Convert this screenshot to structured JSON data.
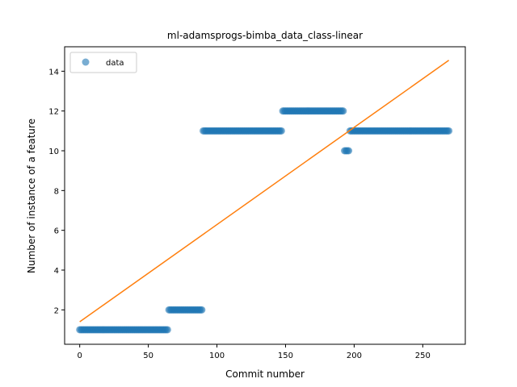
{
  "chart_data": {
    "type": "scatter",
    "title": "ml-adamsprogs-bimba_data_class-linear",
    "xlabel": "Commit number",
    "ylabel": "Number of instance of a feature",
    "xlim": [
      -11,
      281
    ],
    "ylim": [
      0.27,
      15.23
    ],
    "xticks": [
      0,
      50,
      100,
      150,
      200,
      250
    ],
    "yticks": [
      2,
      4,
      6,
      8,
      10,
      12,
      14
    ],
    "grid": false,
    "legend_position": "top-left",
    "point_color": "#1f77b4",
    "line_color": "#ff7f0e",
    "series": [
      {
        "name": "data",
        "kind": "points",
        "segments": [
          {
            "x_start": 0,
            "x_end": 64,
            "y": 1
          },
          {
            "x_start": 65,
            "x_end": 89,
            "y": 2
          },
          {
            "x_start": 90,
            "x_end": 147,
            "y": 11
          },
          {
            "x_start": 148,
            "x_end": 192,
            "y": 12
          },
          {
            "x_start": 193,
            "x_end": 196,
            "y": 10
          },
          {
            "x_start": 197,
            "x_end": 269,
            "y": 11
          }
        ]
      },
      {
        "name": "",
        "kind": "line",
        "x": [
          0,
          269
        ],
        "y": [
          1.4,
          14.55
        ]
      }
    ]
  }
}
